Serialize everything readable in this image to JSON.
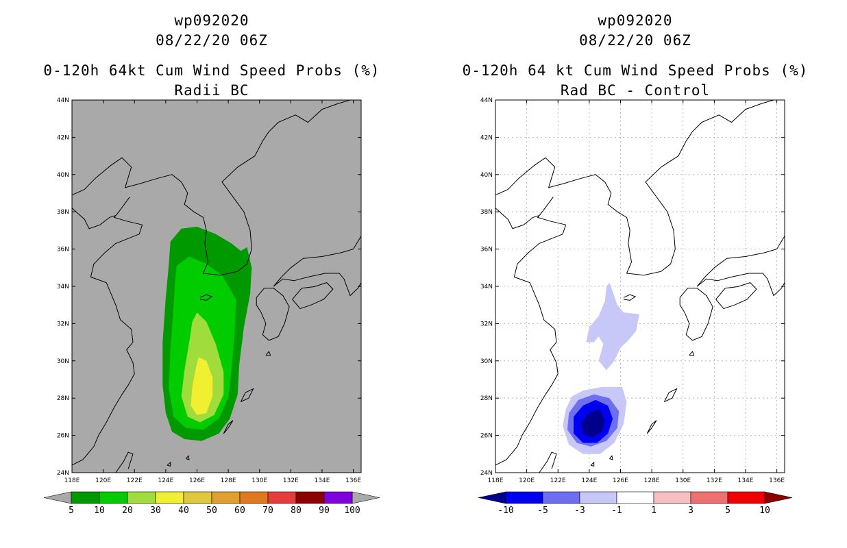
{
  "chart_data": [
    {
      "type": "heatmap",
      "storm_id": "wp092020",
      "datetime": "08/22/20 06Z",
      "title": "0-120h 64kt Cum Wind Speed Probs (%)",
      "subtitle": "Radii BC",
      "lon_range": [
        118,
        136.5
      ],
      "lat_range": [
        24,
        44
      ],
      "lon_ticks": [
        "118E",
        "120E",
        "122E",
        "124E",
        "126E",
        "128E",
        "130E",
        "132E",
        "134E",
        "136E"
      ],
      "lat_ticks": [
        "24N",
        "26N",
        "28N",
        "30N",
        "32N",
        "34N",
        "36N",
        "38N",
        "40N",
        "42N",
        "44N"
      ],
      "background": "#a9a9a9",
      "grid": false,
      "colorbar": {
        "labels": [
          "5",
          "10",
          "20",
          "30",
          "40",
          "50",
          "60",
          "70",
          "80",
          "90",
          "100"
        ],
        "colors": [
          "#009a00",
          "#00cc00",
          "#a0dc3c",
          "#f0f030",
          "#e0c83c",
          "#e0a030",
          "#e07820",
          "#e83c3c",
          "#8c0000",
          "#8000e0"
        ],
        "end_colors": [
          "#a9a9a9",
          "#a9a9a9"
        ]
      },
      "contours": [
        {
          "level": 5,
          "color": "#009a00",
          "points": [
            [
              124.3,
              36.4
            ],
            [
              125.0,
              37.1
            ],
            [
              126.0,
              37.2
            ],
            [
              127.2,
              36.8
            ],
            [
              128.2,
              36.3
            ],
            [
              128.8,
              35.9
            ],
            [
              129.2,
              36.1
            ],
            [
              129.5,
              35.0
            ],
            [
              129.4,
              33.6
            ],
            [
              129.0,
              31.8
            ],
            [
              128.7,
              29.8
            ],
            [
              128.6,
              28.2
            ],
            [
              128.1,
              26.9
            ],
            [
              127.4,
              26.1
            ],
            [
              126.3,
              25.7
            ],
            [
              125.2,
              25.8
            ],
            [
              124.4,
              26.2
            ],
            [
              124.0,
              27.2
            ],
            [
              123.8,
              28.7
            ],
            [
              123.8,
              31.0
            ],
            [
              124.0,
              33.4
            ],
            [
              124.2,
              35.2
            ]
          ]
        },
        {
          "level": 10,
          "color": "#00cc00",
          "points": [
            [
              124.7,
              35.1
            ],
            [
              125.5,
              35.6
            ],
            [
              126.6,
              35.2
            ],
            [
              127.6,
              34.6
            ],
            [
              128.5,
              33.3
            ],
            [
              128.4,
              31.4
            ],
            [
              128.2,
              29.5
            ],
            [
              128.0,
              28.0
            ],
            [
              127.4,
              26.9
            ],
            [
              126.4,
              26.3
            ],
            [
              125.3,
              26.4
            ],
            [
              124.5,
              27.0
            ],
            [
              124.2,
              28.5
            ],
            [
              124.3,
              30.6
            ],
            [
              124.5,
              32.9
            ],
            [
              124.6,
              34.3
            ]
          ]
        },
        {
          "level": 20,
          "color": "#a0dc3c",
          "points": [
            [
              126.0,
              32.6
            ],
            [
              126.6,
              32.1
            ],
            [
              127.2,
              30.9
            ],
            [
              127.7,
              29.4
            ],
            [
              127.7,
              28.2
            ],
            [
              127.1,
              27.1
            ],
            [
              126.2,
              26.7
            ],
            [
              125.4,
              27.0
            ],
            [
              125.0,
              28.1
            ],
            [
              125.2,
              29.5
            ],
            [
              125.5,
              31.0
            ],
            [
              125.7,
              32.1
            ]
          ]
        },
        {
          "level": 30,
          "color": "#f0f030",
          "points": [
            [
              126.1,
              30.2
            ],
            [
              126.6,
              30.0
            ],
            [
              127.0,
              29.1
            ],
            [
              127.0,
              28.1
            ],
            [
              126.6,
              27.2
            ],
            [
              126.0,
              27.1
            ],
            [
              125.6,
              27.6
            ],
            [
              125.7,
              28.6
            ],
            [
              125.9,
              29.5
            ]
          ]
        }
      ]
    },
    {
      "type": "heatmap",
      "storm_id": "wp092020",
      "datetime": "08/22/20 06Z",
      "title": "0-120h 64 kt Cum Wind Speed Probs (%)",
      "subtitle": "Rad BC - Control",
      "lon_range": [
        118,
        136.5
      ],
      "lat_range": [
        24,
        44
      ],
      "lon_ticks": [
        "118E",
        "120E",
        "122E",
        "124E",
        "126E",
        "128E",
        "130E",
        "132E",
        "134E",
        "136E"
      ],
      "lat_ticks": [
        "24N",
        "26N",
        "28N",
        "30N",
        "32N",
        "34N",
        "36N",
        "38N",
        "40N",
        "42N",
        "44N"
      ],
      "background": "#ffffff",
      "grid": true,
      "colorbar": {
        "labels": [
          "-10",
          "-5",
          "-3",
          "-1",
          "1",
          "3",
          "5",
          "10"
        ],
        "colors": [
          "#0000f0",
          "#6e6ef0",
          "#c8c8f8",
          "#ffffff",
          "#f8c0c0",
          "#f07070",
          "#f00000"
        ],
        "end_colors": [
          "#00008c",
          "#8c0000"
        ]
      },
      "contours": [
        {
          "level": -1,
          "color": "#c8c8f8",
          "points": [
            [
              125.3,
              34.2
            ],
            [
              125.8,
              33.0
            ],
            [
              126.2,
              32.6
            ],
            [
              127.2,
              32.5
            ],
            [
              127.0,
              31.6
            ],
            [
              126.5,
              31.1
            ],
            [
              126.0,
              30.7
            ],
            [
              125.6,
              30.0
            ],
            [
              125.1,
              29.5
            ],
            [
              124.6,
              30.0
            ],
            [
              124.9,
              30.9
            ],
            [
              124.6,
              31.3
            ],
            [
              124.3,
              31.0
            ],
            [
              123.8,
              31.0
            ],
            [
              124.0,
              31.8
            ],
            [
              124.6,
              32.4
            ],
            [
              125.0,
              33.2
            ],
            [
              125.1,
              34.0
            ]
          ]
        },
        {
          "level": -1,
          "color": "#c8c8f8",
          "points": [
            [
              122.9,
              28.1
            ],
            [
              123.6,
              28.4
            ],
            [
              124.8,
              28.6
            ],
            [
              126.1,
              28.6
            ],
            [
              126.4,
              27.8
            ],
            [
              126.2,
              26.6
            ],
            [
              125.6,
              25.6
            ],
            [
              124.7,
              25.0
            ],
            [
              123.6,
              25.0
            ],
            [
              122.7,
              25.5
            ],
            [
              122.3,
              26.5
            ],
            [
              122.5,
              27.4
            ]
          ]
        },
        {
          "level": -3,
          "color": "#6e6ef0",
          "points": [
            [
              123.3,
              27.9
            ],
            [
              124.3,
              28.2
            ],
            [
              125.3,
              28.0
            ],
            [
              125.9,
              27.3
            ],
            [
              125.8,
              26.4
            ],
            [
              125.1,
              25.7
            ],
            [
              124.1,
              25.4
            ],
            [
              123.2,
              25.6
            ],
            [
              122.6,
              26.3
            ],
            [
              122.7,
              27.2
            ]
          ]
        },
        {
          "level": -5,
          "color": "#0000f0",
          "points": [
            [
              123.6,
              27.6
            ],
            [
              124.4,
              27.9
            ],
            [
              125.2,
              27.6
            ],
            [
              125.5,
              26.9
            ],
            [
              125.2,
              26.1
            ],
            [
              124.5,
              25.6
            ],
            [
              123.6,
              25.6
            ],
            [
              123.0,
              26.1
            ],
            [
              123.0,
              27.0
            ]
          ]
        },
        {
          "level": -10,
          "color": "#00008c",
          "points": [
            [
              124.0,
              27.2
            ],
            [
              124.7,
              27.4
            ],
            [
              125.0,
              26.8
            ],
            [
              124.8,
              26.2
            ],
            [
              124.2,
              25.9
            ],
            [
              123.6,
              26.1
            ],
            [
              123.5,
              26.7
            ]
          ]
        }
      ]
    }
  ]
}
